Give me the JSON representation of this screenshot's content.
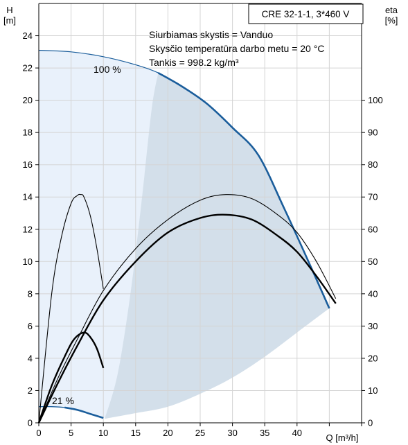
{
  "chart_data": {
    "type": "line",
    "title": "CRE 32-1-1, 3*460 V",
    "info_lines": [
      "Siurbiamas skystis = Vanduo",
      "Skysčio temperatūra darbo metu = 20 °C",
      "Tankis = 998.2 kg/m³"
    ],
    "xlabel": "Q [m³/h]",
    "ylabel_left": [
      "H",
      "[m]"
    ],
    "ylabel_right": [
      "eta",
      "[%]"
    ],
    "xlim": [
      0,
      50
    ],
    "ylim_left": [
      0,
      26
    ],
    "ylim_right": [
      0,
      130
    ],
    "x_ticks": [
      0,
      5,
      10,
      15,
      20,
      25,
      30,
      35,
      40
    ],
    "y_ticks_left": [
      0,
      2,
      4,
      6,
      8,
      10,
      12,
      14,
      16,
      18,
      20,
      22,
      24
    ],
    "y_ticks_right": [
      0,
      10,
      20,
      30,
      40,
      50,
      60,
      70,
      80,
      90,
      100
    ],
    "grid": true,
    "colors": {
      "area_light": "#e9f1fb",
      "area_mid": "#d3dfea",
      "curve_blue": "#1a5d9b",
      "curve_black": "#000000",
      "grid": "#d4d4d4"
    },
    "speed_labels": [
      "100 %",
      "21 %"
    ],
    "series": [
      {
        "name": "100 %",
        "x": [
          0,
          5,
          10,
          15,
          18.5,
          22,
          26,
          30,
          34,
          38,
          42,
          45
        ],
        "y": [
          23.1,
          23.0,
          22.7,
          22.2,
          21.7,
          20.9,
          19.8,
          18.3,
          16.6,
          13.3,
          9.8,
          7.1
        ]
      },
      {
        "name": "21 %",
        "x": [
          0,
          2,
          4,
          6,
          8,
          10
        ],
        "y": [
          1.0,
          1.0,
          0.95,
          0.8,
          0.55,
          0.3
        ]
      },
      {
        "x": [
          0,
          2,
          3.5,
          5,
          6,
          6.5,
          7,
          8,
          9,
          10
        ],
        "y": [
          0,
          8.0,
          11.5,
          13.6,
          14.1,
          14.15,
          14.0,
          12.8,
          10.8,
          8.3
        ]
      },
      {
        "x": [
          0,
          2,
          4,
          5.5,
          7,
          8,
          9,
          10
        ],
        "y": [
          0,
          2.3,
          4.1,
          5.2,
          5.6,
          5.3,
          4.6,
          3.4
        ]
      },
      {
        "x": [
          0,
          3,
          6,
          10,
          15,
          20,
          25,
          29,
          33,
          37,
          40,
          43,
          46
        ],
        "y": [
          0,
          2.8,
          5.2,
          8.2,
          10.8,
          12.6,
          13.8,
          14.15,
          13.9,
          12.9,
          11.8,
          10.0,
          7.7
        ]
      },
      {
        "x": [
          0,
          3,
          6,
          10,
          15,
          20,
          25,
          29,
          33,
          37,
          40,
          43,
          46
        ],
        "y": [
          0,
          2.5,
          4.8,
          7.6,
          10.0,
          11.8,
          12.7,
          12.9,
          12.6,
          11.6,
          10.6,
          9.1,
          7.4
        ]
      }
    ]
  }
}
